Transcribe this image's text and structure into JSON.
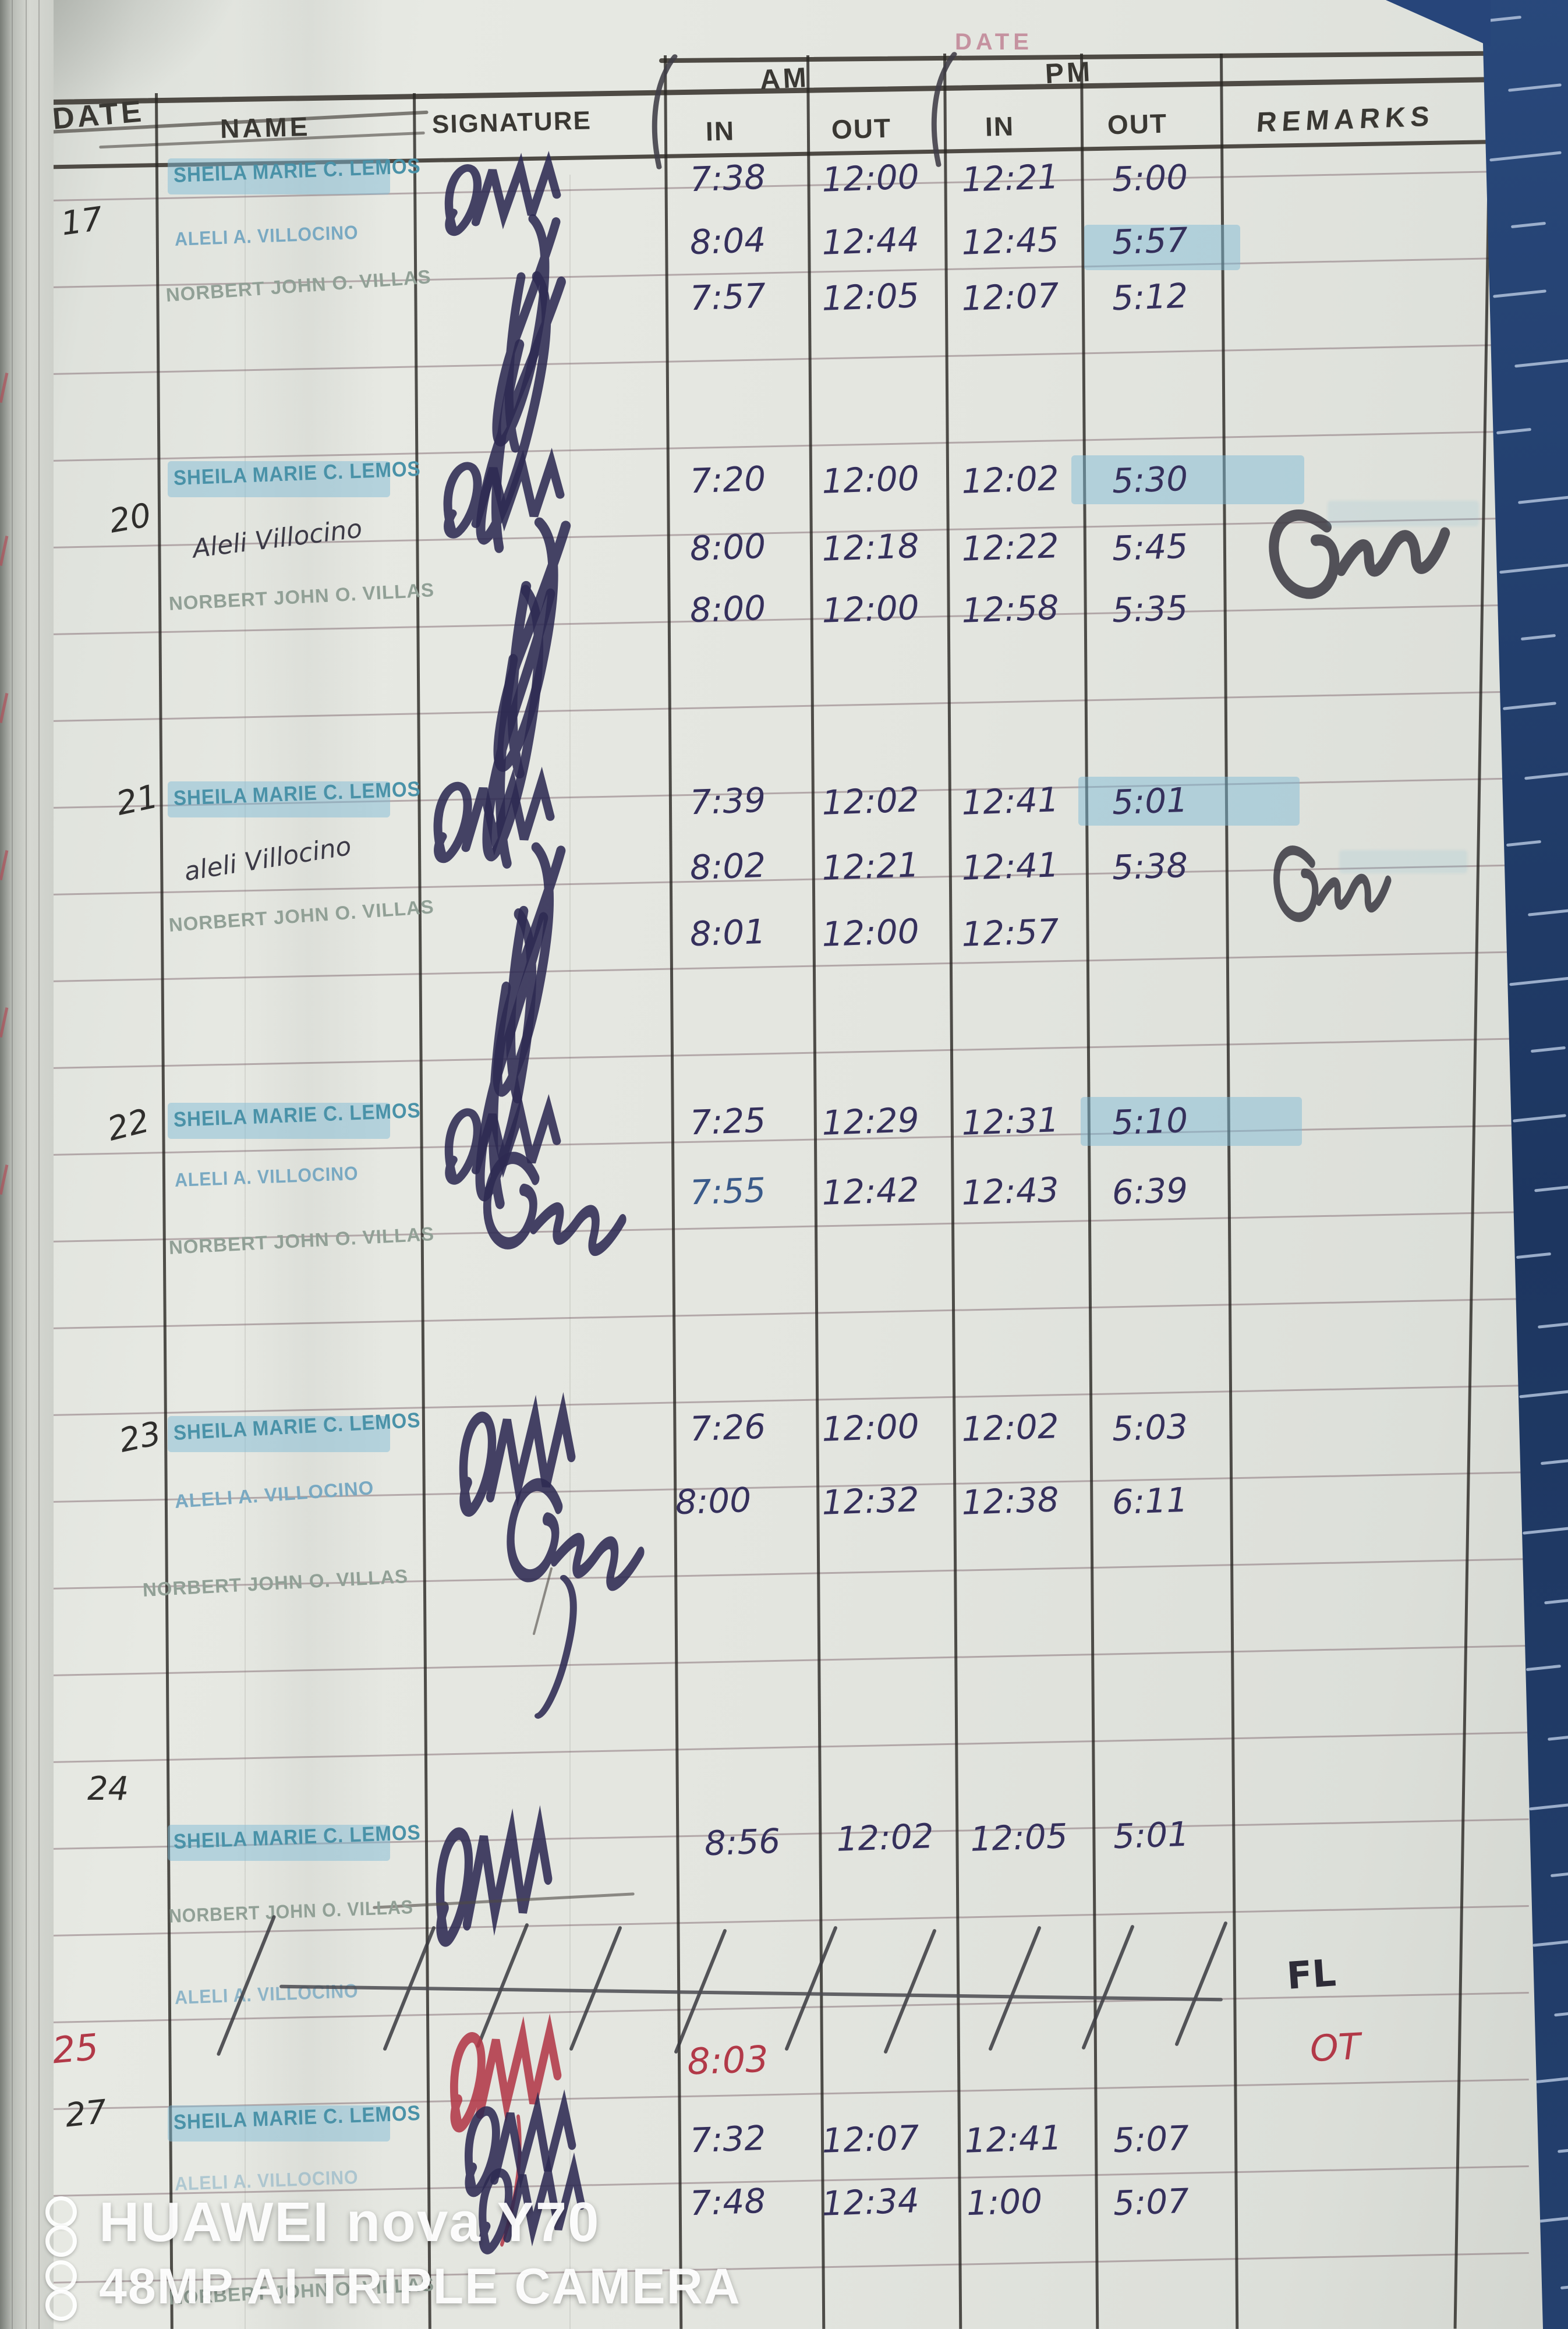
{
  "header": {
    "printed_date_label": "DATE",
    "handwritten_date_label": "DATE",
    "columns": {
      "name": "NAME",
      "signature": "SIGNATURE",
      "in": "IN",
      "out": "OUT",
      "remarks": "REMARKS"
    },
    "am_label": "AM",
    "pm_label": "PM"
  },
  "days": [
    {
      "date": "17",
      "rows": [
        {
          "name": "SHEILA MARIE C. LEMOS",
          "am_in": "7:38",
          "am_out": "12:00",
          "pm_in": "12:21",
          "pm_out": "5:00",
          "remark": ""
        },
        {
          "name": "ALELI A. VILLOCINO",
          "am_in": "8:04",
          "am_out": "12:44",
          "pm_in": "12:45",
          "pm_out": "5:57",
          "remark": ""
        },
        {
          "name": "NORBERT JOHN O. VILLAS",
          "am_in": "7:57",
          "am_out": "12:05",
          "pm_in": "12:07",
          "pm_out": "5:12",
          "remark": ""
        }
      ]
    },
    {
      "date": "20",
      "rows": [
        {
          "name": "SHEILA MARIE C. LEMOS",
          "am_in": "7:20",
          "am_out": "12:00",
          "pm_in": "12:02",
          "pm_out": "5:30",
          "remark": ""
        },
        {
          "name": "Aleli Villocino",
          "am_in": "8:00",
          "am_out": "12:18",
          "pm_in": "12:22",
          "pm_out": "5:45",
          "remark": ""
        },
        {
          "name": "NORBERT JOHN O. VILLAS",
          "am_in": "8:00",
          "am_out": "12:00",
          "pm_in": "12:58",
          "pm_out": "5:35",
          "remark": ""
        }
      ]
    },
    {
      "date": "21",
      "rows": [
        {
          "name": "SHEILA MARIE C. LEMOS",
          "am_in": "7:39",
          "am_out": "12:02",
          "pm_in": "12:41",
          "pm_out": "5:01",
          "remark": ""
        },
        {
          "name": "aleli Villocino",
          "am_in": "8:02",
          "am_out": "12:21",
          "pm_in": "12:41",
          "pm_out": "5:38",
          "remark": ""
        },
        {
          "name": "NORBERT JOHN O. VILLAS",
          "am_in": "8:01",
          "am_out": "12:00",
          "pm_in": "12:57",
          "pm_out": "",
          "remark": ""
        }
      ]
    },
    {
      "date": "22",
      "rows": [
        {
          "name": "SHEILA MARIE C. LEMOS",
          "am_in": "7:25",
          "am_out": "12:29",
          "pm_in": "12:31",
          "pm_out": "5:10",
          "remark": ""
        },
        {
          "name": "ALELI A. VILLOCINO",
          "am_in": "7:55",
          "am_out": "12:42",
          "pm_in": "12:43",
          "pm_out": "6:39",
          "remark": ""
        },
        {
          "name": "NORBERT JOHN O. VILLAS",
          "am_in": "",
          "am_out": "",
          "pm_in": "",
          "pm_out": "",
          "remark": ""
        }
      ]
    },
    {
      "date": "23",
      "rows": [
        {
          "name": "SHEILA MARIE C. LEMOS",
          "am_in": "7:26",
          "am_out": "12:00",
          "pm_in": "12:02",
          "pm_out": "5:03",
          "remark": ""
        },
        {
          "name": "ALELI A. VILLOCINO",
          "am_in": "8:00",
          "am_out": "12:32",
          "pm_in": "12:38",
          "pm_out": "6:11",
          "remark": ""
        },
        {
          "name": "NORBERT JOHN O. VILLAS",
          "am_in": "",
          "am_out": "",
          "pm_in": "",
          "pm_out": "",
          "remark": ""
        }
      ]
    },
    {
      "date": "24",
      "rows": [
        {
          "name": "SHEILA MARIE C. LEMOS",
          "am_in": "8:56",
          "am_out": "12:02",
          "pm_in": "12:05",
          "pm_out": "5:01",
          "remark": ""
        },
        {
          "name": "NORBERT JOHN O. VILLAS",
          "am_in": "",
          "am_out": "",
          "pm_in": "",
          "pm_out": "",
          "remark": ""
        },
        {
          "name": "ALELI A. VILLOCINO",
          "am_in": "",
          "am_out": "",
          "pm_in": "",
          "pm_out": "",
          "remark": "FL",
          "crossed_out": true
        }
      ]
    },
    {
      "date": "25",
      "rows": [
        {
          "name": "",
          "am_in": "8:03",
          "am_out": "",
          "pm_in": "",
          "pm_out": "",
          "remark": "OT",
          "ink": "red"
        }
      ]
    },
    {
      "date": "27",
      "rows": [
        {
          "name": "SHEILA MARIE C. LEMOS",
          "am_in": "7:32",
          "am_out": "12:07",
          "pm_in": "12:41",
          "pm_out": "5:07",
          "remark": ""
        },
        {
          "name": "ALELI A. VILLOCINO",
          "am_in": "7:48",
          "am_out": "12:34",
          "pm_in": "1:00",
          "pm_out": "5:07",
          "remark": ""
        },
        {
          "name": "NORBERT JOHN O. VILLAS",
          "am_in": "",
          "am_out": "",
          "pm_in": "",
          "pm_out": "",
          "remark": ""
        }
      ]
    }
  ],
  "watermark": {
    "line1": "HUAWEI nova Y70",
    "line2": "48MP AI TRIPLE CAMERA"
  },
  "colors": {
    "highlight": "#7db9d6",
    "stamp_teal": "#4a92a8",
    "stamp_blue": "#79a9c2",
    "stamp_gray": "#91a096",
    "ink_blue": "#35305c",
    "ink_red": "#b23948",
    "denim": "#24406e",
    "paper": "#e3e5df"
  }
}
